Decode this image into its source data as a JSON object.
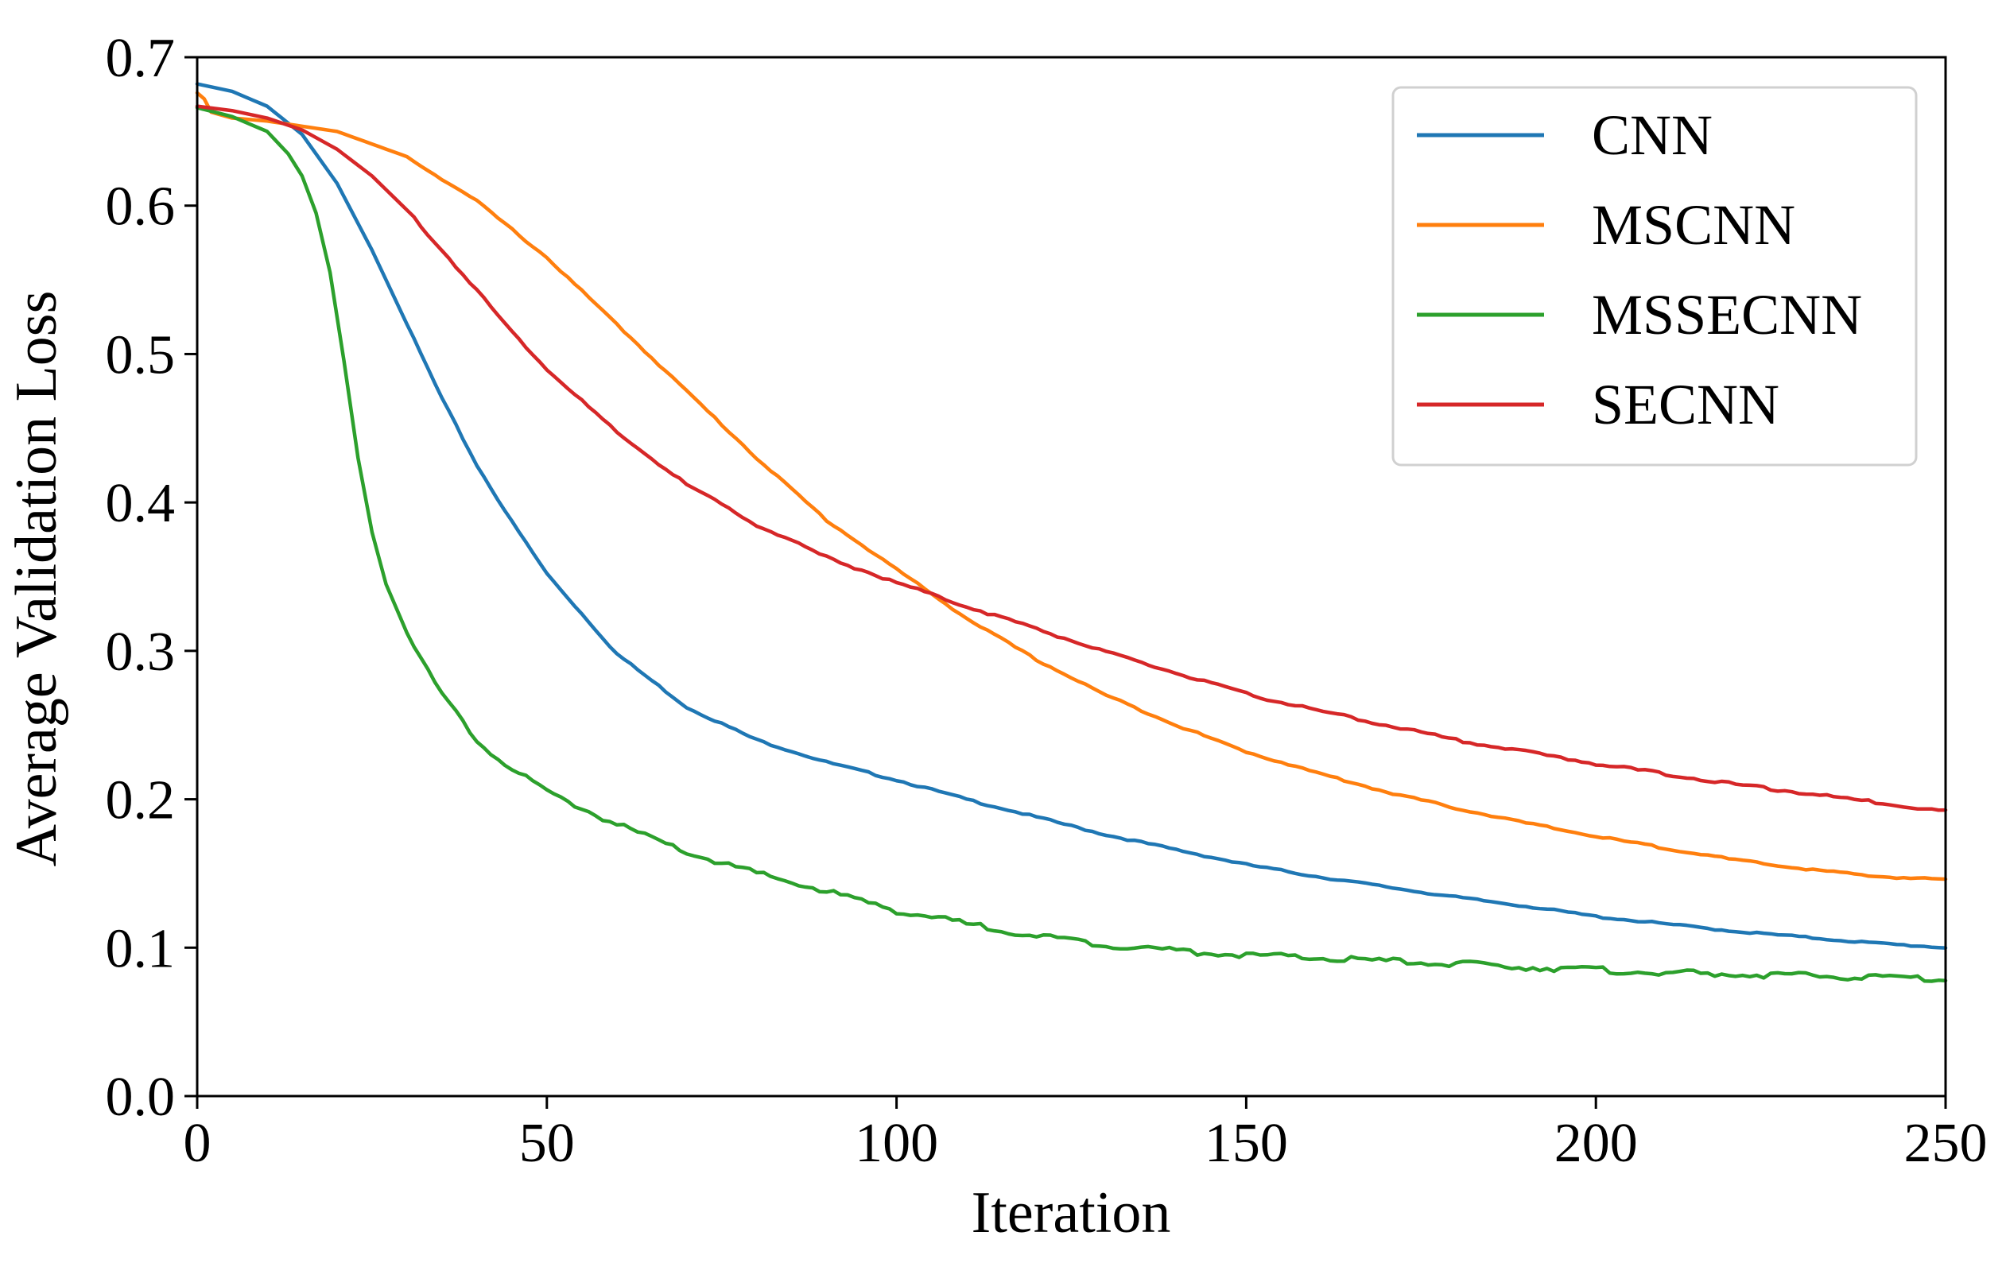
{
  "chart_data": {
    "type": "line",
    "title": "",
    "xlabel": "Iteration",
    "ylabel": "Average Validation Loss",
    "xlim": [
      0,
      250
    ],
    "ylim": [
      0.0,
      0.7
    ],
    "xticks": [
      0,
      50,
      100,
      150,
      200,
      250
    ],
    "xtick_labels": [
      "0",
      "50",
      "100",
      "150",
      "200",
      "250"
    ],
    "yticks": [
      0.0,
      0.1,
      0.2,
      0.3,
      0.4,
      0.5,
      0.6,
      0.7
    ],
    "ytick_labels": [
      "0.0",
      "0.1",
      "0.2",
      "0.3",
      "0.4",
      "0.5",
      "0.6",
      "0.7"
    ],
    "grid": false,
    "legend_position": "top-right",
    "series": [
      {
        "name": "CNN",
        "color": "#1f77b4",
        "x": [
          0,
          5,
          10,
          15,
          20,
          25,
          30,
          35,
          40,
          45,
          50,
          60,
          70,
          80,
          90,
          100,
          110,
          120,
          130,
          140,
          150,
          160,
          170,
          180,
          190,
          200,
          210,
          220,
          230,
          240,
          250
        ],
        "y": [
          0.682,
          0.677,
          0.667,
          0.648,
          0.615,
          0.57,
          0.52,
          0.47,
          0.425,
          0.387,
          0.352,
          0.298,
          0.262,
          0.24,
          0.225,
          0.213,
          0.2,
          0.188,
          0.176,
          0.166,
          0.156,
          0.148,
          0.141,
          0.134,
          0.128,
          0.121,
          0.116,
          0.111,
          0.107,
          0.103,
          0.1
        ]
      },
      {
        "name": "MSCNN",
        "color": "#ff7f0e",
        "x": [
          0,
          1,
          2,
          5,
          10,
          20,
          30,
          40,
          50,
          60,
          70,
          80,
          90,
          100,
          110,
          120,
          130,
          140,
          150,
          160,
          170,
          180,
          190,
          200,
          210,
          220,
          230,
          240,
          250
        ],
        "y": [
          0.676,
          0.672,
          0.663,
          0.659,
          0.657,
          0.65,
          0.633,
          0.603,
          0.565,
          0.52,
          0.475,
          0.43,
          0.388,
          0.355,
          0.322,
          0.294,
          0.27,
          0.25,
          0.232,
          0.218,
          0.205,
          0.194,
          0.184,
          0.175,
          0.167,
          0.159,
          0.153,
          0.148,
          0.146
        ]
      },
      {
        "name": "MSSECNN",
        "color": "#2ca02c",
        "x": [
          0,
          5,
          10,
          13,
          15,
          17,
          19,
          21,
          23,
          25,
          27,
          30,
          35,
          40,
          45,
          50,
          60,
          70,
          80,
          90,
          100,
          110,
          120,
          130,
          140,
          150,
          160,
          170,
          180,
          190,
          200,
          210,
          220,
          230,
          240,
          250
        ],
        "y": [
          0.666,
          0.66,
          0.65,
          0.635,
          0.62,
          0.595,
          0.555,
          0.495,
          0.43,
          0.38,
          0.345,
          0.312,
          0.27,
          0.24,
          0.22,
          0.205,
          0.183,
          0.164,
          0.15,
          0.138,
          0.125,
          0.116,
          0.108,
          0.102,
          0.098,
          0.095,
          0.093,
          0.091,
          0.089,
          0.087,
          0.085,
          0.083,
          0.082,
          0.081,
          0.08,
          0.079
        ]
      },
      {
        "name": "SECNN",
        "color": "#d62728",
        "x": [
          0,
          5,
          10,
          15,
          20,
          25,
          30,
          35,
          40,
          45,
          50,
          60,
          70,
          80,
          90,
          100,
          110,
          120,
          130,
          140,
          150,
          160,
          170,
          180,
          190,
          200,
          210,
          220,
          230,
          240,
          250
        ],
        "y": [
          0.667,
          0.664,
          0.659,
          0.651,
          0.638,
          0.62,
          0.597,
          0.57,
          0.543,
          0.515,
          0.49,
          0.447,
          0.412,
          0.385,
          0.363,
          0.346,
          0.33,
          0.315,
          0.299,
          0.285,
          0.271,
          0.26,
          0.25,
          0.24,
          0.232,
          0.224,
          0.217,
          0.21,
          0.204,
          0.198,
          0.192
        ]
      }
    ]
  }
}
